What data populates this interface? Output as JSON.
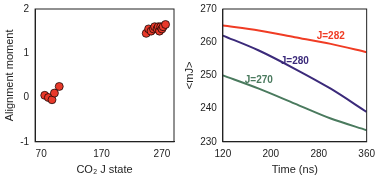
{
  "chart_data": [
    {
      "type": "scatter",
      "x_label": "CO₂ J state",
      "y_label": "Alignment moment",
      "x": [
        76,
        82,
        88,
        92,
        100,
        244,
        248,
        252,
        256,
        258,
        262,
        264,
        266,
        268,
        270,
        272,
        276
      ],
      "values": [
        0.05,
        0.0,
        -0.05,
        0.1,
        0.25,
        1.45,
        1.55,
        1.5,
        1.55,
        1.6,
        1.55,
        1.6,
        1.5,
        1.6,
        1.55,
        1.6,
        1.65
      ],
      "color": "#e8392a",
      "marker": "circle",
      "xlim": [
        60,
        290
      ],
      "xticks": [
        70,
        170,
        270
      ],
      "ylim": [
        -1,
        2
      ],
      "yticks": [
        -1,
        0,
        1,
        2
      ],
      "grid": false
    },
    {
      "type": "line",
      "x_label": "Time (ns)",
      "y_label": "<mJ>",
      "x": [
        120,
        180,
        240,
        300,
        360
      ],
      "series": [
        {
          "name": "J=282",
          "color": "#f03c24",
          "values": [
            265,
            263.5,
            261.5,
            259.5,
            257
          ]
        },
        {
          "name": "J=280",
          "color": "#3b2a7a",
          "values": [
            262,
            257.5,
            252,
            246,
            239
          ]
        },
        {
          "name": "J=270",
          "color": "#4a7a5e",
          "values": [
            250,
            246,
            241.5,
            237,
            233.5
          ]
        }
      ],
      "xlim": [
        120,
        360
      ],
      "xticks": [
        120,
        200,
        280,
        360
      ],
      "ylim": [
        230,
        270
      ],
      "yticks": [
        230,
        240,
        250,
        260,
        270
      ],
      "grid": false
    }
  ]
}
